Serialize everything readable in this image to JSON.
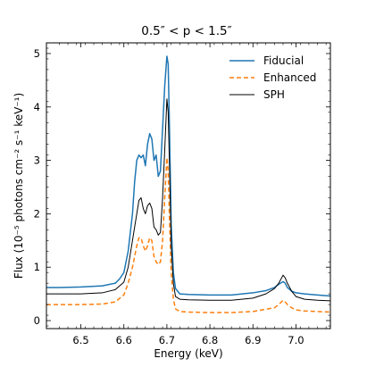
{
  "chart_data": {
    "type": "line",
    "title": "0.5″ < p < 1.5″",
    "xlabel": "Energy (keV)",
    "ylabel": "Flux (10⁻⁵ photons cm⁻² s⁻¹ keV⁻¹)",
    "xlim": [
      6.42,
      7.08
    ],
    "ylim": [
      -0.15,
      5.2
    ],
    "xticks": [
      6.5,
      6.6,
      6.7,
      6.8,
      6.9,
      7.0
    ],
    "xtick_labels": [
      "6.5",
      "6.6",
      "6.7",
      "6.8",
      "6.9",
      "7.0"
    ],
    "yticks": [
      0,
      1,
      2,
      3,
      4,
      5
    ],
    "ytick_labels": [
      "0",
      "1",
      "2",
      "3",
      "4",
      "5"
    ],
    "grid": false,
    "legend": "top-right",
    "series": [
      {
        "name": "Fiducial",
        "color": "#1f77b4",
        "style": "solid",
        "x": [
          6.42,
          6.45,
          6.5,
          6.55,
          6.58,
          6.59,
          6.6,
          6.61,
          6.62,
          6.625,
          6.63,
          6.635,
          6.64,
          6.645,
          6.65,
          6.655,
          6.66,
          6.665,
          6.67,
          6.675,
          6.68,
          6.685,
          6.69,
          6.695,
          6.7,
          6.703,
          6.706,
          6.71,
          6.715,
          6.72,
          6.73,
          6.75,
          6.8,
          6.85,
          6.9,
          6.93,
          6.95,
          6.96,
          6.97,
          6.975,
          6.98,
          6.99,
          7.0,
          7.02,
          7.05,
          7.08
        ],
        "y": [
          0.62,
          0.62,
          0.63,
          0.65,
          0.7,
          0.78,
          0.9,
          1.3,
          2.0,
          2.6,
          3.0,
          3.1,
          3.05,
          3.1,
          2.9,
          3.3,
          3.5,
          3.4,
          3.0,
          3.1,
          2.7,
          2.8,
          3.6,
          4.4,
          4.95,
          4.8,
          3.6,
          1.8,
          0.9,
          0.6,
          0.5,
          0.49,
          0.48,
          0.48,
          0.52,
          0.56,
          0.62,
          0.68,
          0.73,
          0.7,
          0.62,
          0.55,
          0.52,
          0.5,
          0.48,
          0.46
        ]
      },
      {
        "name": "Enhanced",
        "color": "#ff7f0e",
        "style": "dashed",
        "x": [
          6.42,
          6.45,
          6.5,
          6.55,
          6.58,
          6.6,
          6.61,
          6.62,
          6.63,
          6.635,
          6.64,
          6.645,
          6.65,
          6.655,
          6.66,
          6.665,
          6.67,
          6.675,
          6.68,
          6.685,
          6.69,
          6.695,
          6.7,
          6.703,
          6.706,
          6.71,
          6.715,
          6.72,
          6.73,
          6.75,
          6.8,
          6.85,
          6.9,
          6.95,
          6.96,
          6.97,
          6.975,
          6.98,
          6.99,
          7.0,
          7.02,
          7.05,
          7.08
        ],
        "y": [
          0.3,
          0.3,
          0.3,
          0.31,
          0.35,
          0.48,
          0.7,
          1.0,
          1.4,
          1.55,
          1.55,
          1.4,
          1.3,
          1.4,
          1.55,
          1.5,
          1.2,
          1.1,
          1.05,
          1.1,
          1.5,
          2.3,
          3.05,
          2.8,
          1.9,
          0.9,
          0.4,
          0.22,
          0.17,
          0.16,
          0.15,
          0.15,
          0.17,
          0.24,
          0.3,
          0.38,
          0.35,
          0.3,
          0.24,
          0.2,
          0.18,
          0.17,
          0.16
        ]
      },
      {
        "name": "SPH",
        "color": "#000000",
        "style": "solid",
        "x": [
          6.42,
          6.45,
          6.5,
          6.55,
          6.58,
          6.6,
          6.61,
          6.62,
          6.63,
          6.635,
          6.64,
          6.645,
          6.65,
          6.655,
          6.66,
          6.665,
          6.67,
          6.675,
          6.68,
          6.685,
          6.69,
          6.695,
          6.7,
          6.703,
          6.706,
          6.71,
          6.715,
          6.72,
          6.73,
          6.75,
          6.8,
          6.85,
          6.9,
          6.93,
          6.95,
          6.96,
          6.97,
          6.975,
          6.98,
          6.99,
          7.0,
          7.02,
          7.05,
          7.08
        ],
        "y": [
          0.5,
          0.5,
          0.5,
          0.52,
          0.58,
          0.72,
          1.0,
          1.5,
          2.0,
          2.25,
          2.3,
          2.1,
          2.0,
          2.15,
          2.2,
          2.1,
          1.75,
          1.7,
          1.6,
          1.65,
          2.3,
          3.2,
          4.15,
          3.9,
          2.9,
          1.4,
          0.7,
          0.45,
          0.4,
          0.39,
          0.38,
          0.38,
          0.42,
          0.5,
          0.6,
          0.7,
          0.85,
          0.8,
          0.7,
          0.55,
          0.45,
          0.4,
          0.38,
          0.37
        ]
      }
    ]
  }
}
